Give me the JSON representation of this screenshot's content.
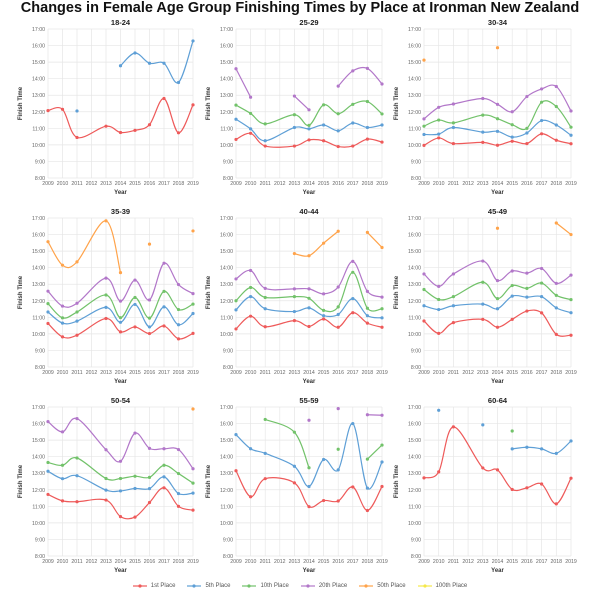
{
  "chart_data": {
    "type": "line",
    "title": "Changes in Female Age Group Finishing Times by Place at Ironman New Zealand",
    "xlabel": "Year",
    "ylabel": "Finish Time",
    "x_ticks": [
      "2009",
      "2010",
      "2011",
      "2012",
      "2013",
      "2014",
      "2015",
      "2016",
      "2017",
      "2018",
      "2019"
    ],
    "x": [
      2009,
      2010,
      2011,
      2013,
      2014,
      2015,
      2016,
      2017,
      2018,
      2019
    ],
    "y_unit": "hours",
    "ylim": [
      8,
      17
    ],
    "y_ticks": [
      "8:00",
      "9:00",
      "10:00",
      "11:00",
      "12:00",
      "13:00",
      "14:00",
      "15:00",
      "16:00",
      "17:00"
    ],
    "grid": true,
    "legend_position": "bottom",
    "legend": [
      {
        "name": "1st Place",
        "color": "#ee5a5a"
      },
      {
        "name": "5th Place",
        "color": "#5e9fd6"
      },
      {
        "name": "10th Place",
        "color": "#72c26a"
      },
      {
        "name": "20th Place",
        "color": "#b277c9"
      },
      {
        "name": "50th Place",
        "color": "#ffa34a"
      },
      {
        "name": "100th Place",
        "color": "#f5e84a"
      }
    ],
    "panels": [
      {
        "title": "18-24",
        "series": [
          {
            "name": "1st Place",
            "values": [
              12.07,
              12.15,
              10.45,
              11.13,
              10.75,
              10.88,
              11.22,
              12.8,
              10.73,
              12.42
            ]
          },
          {
            "name": "5th Place",
            "values": [
              null,
              null,
              12.05,
              null,
              14.78,
              15.55,
              14.93,
              14.93,
              13.77,
              16.28
            ]
          }
        ]
      },
      {
        "title": "25-29",
        "series": [
          {
            "name": "1st Place",
            "values": [
              10.33,
              10.7,
              9.93,
              9.93,
              10.3,
              10.25,
              9.9,
              9.93,
              10.35,
              10.17
            ]
          },
          {
            "name": "5th Place",
            "values": [
              11.55,
              10.97,
              10.25,
              11.05,
              10.97,
              11.2,
              10.85,
              11.32,
              11.05,
              11.2
            ]
          },
          {
            "name": "10th Place",
            "values": [
              12.4,
              11.9,
              11.27,
              11.82,
              11.18,
              12.42,
              11.88,
              12.45,
              12.62,
              11.87
            ]
          },
          {
            "name": "20th Place",
            "values": [
              14.6,
              12.88,
              null,
              12.95,
              12.12,
              null,
              13.55,
              14.47,
              14.62,
              13.68
            ]
          }
        ]
      },
      {
        "title": "30-34",
        "series": [
          {
            "name": "1st Place",
            "values": [
              9.97,
              10.42,
              10.08,
              10.15,
              9.98,
              10.22,
              10.08,
              10.67,
              10.28,
              10.07
            ]
          },
          {
            "name": "5th Place",
            "values": [
              10.63,
              10.65,
              11.05,
              10.77,
              10.82,
              10.47,
              10.72,
              11.47,
              11.2,
              10.58
            ]
          },
          {
            "name": "10th Place",
            "values": [
              11.13,
              11.5,
              11.33,
              11.8,
              11.58,
              11.22,
              11.0,
              12.58,
              12.32,
              11.07
            ]
          },
          {
            "name": "20th Place",
            "values": [
              11.57,
              12.27,
              12.47,
              12.8,
              12.45,
              12.0,
              12.92,
              13.38,
              13.53,
              12.05
            ]
          },
          {
            "name": "50th Place",
            "values": [
              15.12,
              null,
              null,
              null,
              15.87,
              null,
              null,
              null,
              null,
              null
            ]
          }
        ]
      },
      {
        "title": "35-39",
        "series": [
          {
            "name": "1st Place",
            "values": [
              10.63,
              9.82,
              9.92,
              10.93,
              10.12,
              10.42,
              10.02,
              10.48,
              9.7,
              10.03
            ]
          },
          {
            "name": "5th Place",
            "values": [
              11.32,
              10.65,
              10.77,
              11.6,
              10.7,
              11.78,
              10.42,
              11.63,
              10.55,
              11.23
            ]
          },
          {
            "name": "10th Place",
            "values": [
              11.83,
              10.97,
              11.32,
              12.35,
              10.98,
              12.2,
              10.95,
              12.57,
              11.47,
              11.8
            ]
          },
          {
            "name": "20th Place",
            "values": [
              12.58,
              11.68,
              11.85,
              13.37,
              11.98,
              13.25,
              12.05,
              14.27,
              12.98,
              12.43
            ]
          },
          {
            "name": "50th Place",
            "values": [
              15.57,
              14.15,
              14.35,
              16.83,
              13.7,
              null,
              15.42,
              null,
              null,
              16.22
            ]
          }
        ]
      },
      {
        "title": "40-44",
        "series": [
          {
            "name": "1st Place",
            "values": [
              10.3,
              11.07,
              10.43,
              10.8,
              10.45,
              10.9,
              10.4,
              11.28,
              10.65,
              10.4
            ]
          },
          {
            "name": "5th Place",
            "values": [
              11.45,
              12.25,
              11.52,
              11.35,
              11.57,
              11.1,
              11.17,
              12.13,
              11.1,
              10.97
            ]
          },
          {
            "name": "10th Place",
            "values": [
              12.0,
              12.8,
              12.2,
              12.25,
              12.15,
              11.42,
              11.63,
              13.72,
              11.55,
              11.52
            ]
          },
          {
            "name": "20th Place",
            "values": [
              13.32,
              13.83,
              12.75,
              12.72,
              12.72,
              12.42,
              12.83,
              14.38,
              12.57,
              12.22
            ]
          },
          {
            "name": "50th Place",
            "values": [
              null,
              null,
              null,
              14.85,
              14.72,
              15.48,
              16.2,
              null,
              16.13,
              15.22
            ]
          }
        ]
      },
      {
        "title": "45-49",
        "series": [
          {
            "name": "1st Place",
            "values": [
              10.78,
              10.03,
              10.68,
              10.88,
              10.4,
              10.88,
              11.38,
              11.27,
              9.97,
              9.92
            ]
          },
          {
            "name": "5th Place",
            "values": [
              11.7,
              11.47,
              11.7,
              11.8,
              11.52,
              12.28,
              12.22,
              12.25,
              11.57,
              11.28
            ]
          },
          {
            "name": "10th Place",
            "values": [
              12.68,
              12.08,
              12.25,
              13.12,
              12.13,
              12.92,
              12.75,
              13.07,
              12.33,
              12.07
            ]
          },
          {
            "name": "20th Place",
            "values": [
              13.62,
              12.87,
              13.62,
              14.4,
              13.22,
              13.8,
              13.67,
              13.95,
              13.05,
              13.55
            ]
          },
          {
            "name": "50th Place",
            "values": [
              null,
              null,
              null,
              null,
              16.38,
              null,
              null,
              null,
              16.7,
              16.0
            ]
          }
        ]
      },
      {
        "title": "50-54",
        "series": [
          {
            "name": "1st Place",
            "values": [
              11.72,
              11.33,
              11.28,
              11.38,
              10.38,
              10.35,
              11.23,
              12.12,
              11.0,
              10.77
            ]
          },
          {
            "name": "5th Place",
            "values": [
              13.12,
              12.67,
              12.85,
              11.98,
              11.93,
              12.08,
              12.07,
              12.78,
              11.77,
              11.8
            ]
          },
          {
            "name": "10th Place",
            "values": [
              13.65,
              13.48,
              13.92,
              12.68,
              12.68,
              12.82,
              12.75,
              13.48,
              12.98,
              12.4
            ]
          },
          {
            "name": "20th Place",
            "values": [
              16.12,
              15.5,
              16.3,
              14.42,
              13.72,
              15.42,
              14.5,
              14.48,
              14.43,
              13.27
            ]
          },
          {
            "name": "50th Place",
            "values": [
              null,
              null,
              null,
              null,
              null,
              null,
              null,
              null,
              null,
              16.88
            ]
          }
        ]
      },
      {
        "title": "55-59",
        "series": [
          {
            "name": "1st Place",
            "values": [
              13.15,
              11.58,
              12.67,
              12.42,
              10.98,
              11.35,
              11.32,
              12.17,
              10.75,
              12.2
            ]
          },
          {
            "name": "5th Place",
            "values": [
              15.33,
              14.48,
              14.2,
              13.42,
              12.2,
              13.83,
              13.2,
              16.0,
              12.1,
              13.68
            ]
          },
          {
            "name": "10th Place",
            "values": [
              null,
              null,
              16.25,
              15.48,
              13.33,
              null,
              14.45,
              null,
              13.85,
              14.7
            ]
          },
          {
            "name": "20th Place",
            "values": [
              null,
              null,
              null,
              null,
              16.2,
              null,
              16.9,
              null,
              16.53,
              16.5
            ]
          }
        ]
      },
      {
        "title": "60-64",
        "series": [
          {
            "name": "1st Place",
            "values": [
              12.72,
              13.08,
              15.8,
              13.32,
              13.2,
              12.02,
              12.12,
              12.35,
              11.15,
              12.7
            ]
          },
          {
            "name": "5th Place",
            "values": [
              null,
              16.8,
              null,
              15.92,
              null,
              14.47,
              14.57,
              14.47,
              14.2,
              14.95
            ]
          },
          {
            "name": "10th Place",
            "values": [
              null,
              null,
              null,
              null,
              null,
              15.55,
              null,
              null,
              null,
              null
            ]
          }
        ]
      }
    ]
  }
}
